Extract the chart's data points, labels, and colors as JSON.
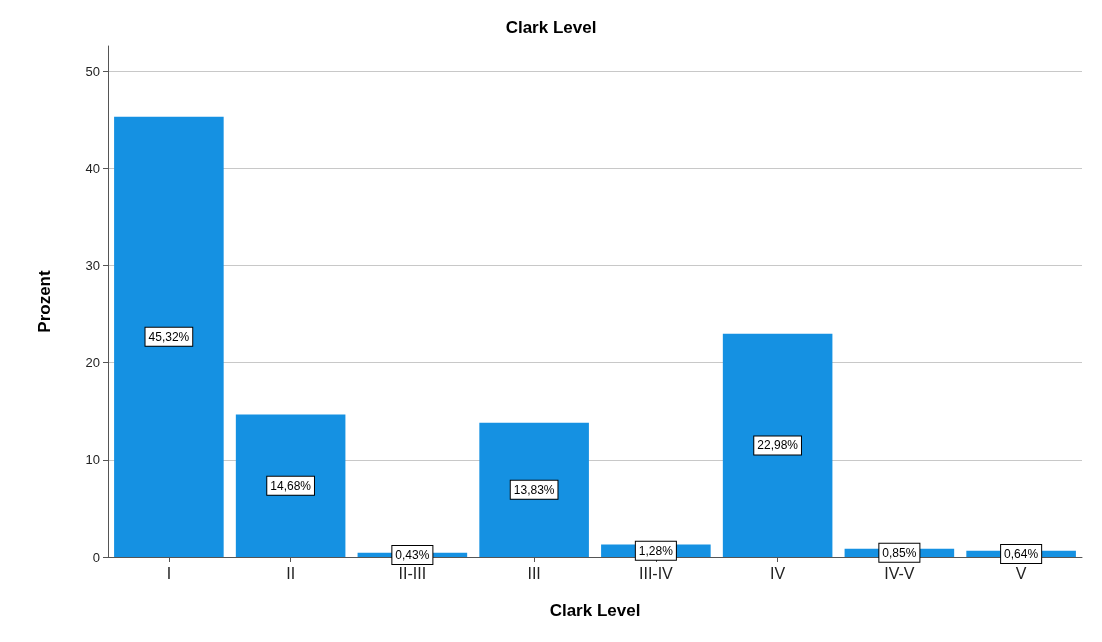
{
  "chart_data": {
    "type": "bar",
    "title": "Clark Level",
    "xlabel": "Clark Level",
    "ylabel": "Prozent",
    "categories": [
      "I",
      "II",
      "II-III",
      "III",
      "III-IV",
      "IV",
      "IV-V",
      "V"
    ],
    "values": [
      45.32,
      14.68,
      0.43,
      13.83,
      1.28,
      22.98,
      0.85,
      0.64
    ],
    "value_labels": [
      "45,32%",
      "14,68%",
      "0,43%",
      "13,83%",
      "1,28%",
      "22,98%",
      "0,85%",
      "0,64%"
    ],
    "color": "#1591e2",
    "ylim": [
      0,
      52.6
    ],
    "yticks": [
      0,
      10,
      20,
      30,
      40,
      50
    ],
    "grid": "y"
  }
}
